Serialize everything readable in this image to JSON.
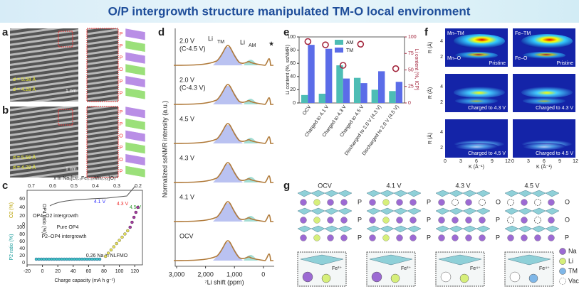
{
  "title": "O/P intergrowth structure manipulated TM-O local environment",
  "panel_a": {
    "label": "a",
    "notes": [
      "d = 5.58 Å",
      "d = 4.28 Å"
    ],
    "scale": "1 nm",
    "stack": [
      "P",
      "P",
      "P",
      "O",
      "P",
      "P"
    ]
  },
  "panel_b": {
    "label": "b",
    "notes": [
      "d = 5.56 Å",
      "d = 4.28 Å"
    ],
    "scale": "1 nm",
    "stack": [
      "P",
      "P",
      "O",
      "P",
      "O",
      "P"
    ]
  },
  "panel_c": {
    "label": "c",
    "top_axis_label": "x in Naₓ[Li₀.₁Fe₀.₃₇Mn₀.₅₃]O₂",
    "top_ticks": [
      0.7,
      0.6,
      0.5,
      0.4,
      0.3,
      0.2
    ],
    "x_label": "Charge capacity (mA h g⁻¹)",
    "xticks": [
      -20,
      0,
      20,
      40,
      60,
      80,
      100,
      120
    ],
    "xlim": [
      -20,
      130
    ],
    "o2_label": "O2 (%)",
    "o2_ticks": [
      0,
      20,
      40,
      60
    ],
    "op4_label": "OP4 ratio (%)",
    "p2_label": "P2 ratio (%)",
    "p2_ticks": [
      100,
      80,
      60,
      40,
      20,
      0
    ],
    "notes": [
      "4.1 V",
      "4.3 V",
      "4.5 V",
      "OP4–O2 intergrowth",
      "Pure OP4",
      "P2–OP4 intergrowth",
      "0.26 Na in NLFMO"
    ]
  },
  "panel_d": {
    "label": "d",
    "y_label": "Normalized ssNMR intensity (a.u.)",
    "x_label": "⁷Li shift (ppm)",
    "xlim": [
      3000,
      -300
    ],
    "xticks": [
      {
        "value": 3000,
        "label": "3,000"
      },
      {
        "value": 2000,
        "label": "2,000"
      },
      {
        "value": 1000,
        "label": "1,000"
      },
      0
    ],
    "peaks": [
      "Li",
      "TM",
      "Li",
      "AM",
      "★"
    ],
    "spectra": [
      [
        "2.0 V",
        "(C-4.5 V)"
      ],
      [
        "2.0 V",
        "(C-4.3 V)"
      ],
      [
        "4.5 V"
      ],
      [
        "4.3 V"
      ],
      [
        "4.1 V"
      ],
      [
        "OCV"
      ]
    ]
  },
  "chart_data": {
    "type": "bar",
    "label": "e",
    "categories": [
      "OCV",
      "Charged to 4.1 V",
      "Charged to 4.3 V",
      "Charged to 4.5 V",
      "Discharged to 2.0 V (4.3 V)",
      "Discharged to 2.0 V (4.5 V)"
    ],
    "series": [
      {
        "name": "AM",
        "color": "#4dbdb5",
        "values": [
          12,
          14,
          57,
          38,
          20,
          18
        ]
      },
      {
        "name": "TM",
        "color": "#5b6ce8",
        "values": [
          88,
          82,
          37,
          30,
          48,
          32
        ]
      },
      {
        "name": "Li content (%, ICP)",
        "color": "#a3263d",
        "axis": "y2",
        "values": [
          93,
          88,
          57,
          89,
          null,
          52
        ]
      }
    ],
    "y_label": "Li content (%, ssNMR)",
    "y2_label": "Li content (%, ICP)",
    "ylim": [
      0,
      100
    ],
    "yticks": [
      0,
      20,
      40,
      60,
      80,
      100
    ],
    "y2lim": [
      0,
      100
    ],
    "y2ticks": [
      0,
      25,
      50,
      75,
      100
    ]
  },
  "panel_f": {
    "label": "f",
    "maps": [
      [
        "Mn–TM",
        "Mn–O",
        "Pristine"
      ],
      [
        "Fe–TM",
        "Fe–O",
        "Pristine"
      ],
      [
        "Charged to 4.3 V"
      ],
      [
        "Charged to 4.3 V"
      ],
      [
        "Charged to 4.5 V"
      ],
      [
        "Charged to 4.5 V"
      ]
    ],
    "r_label": "R (Å)",
    "k_label": "K (Å⁻¹)",
    "r_ticks": [
      2,
      4
    ],
    "k_ticks": [
      0,
      3,
      6,
      9,
      12
    ]
  },
  "panel_g": {
    "label": "g",
    "states": [
      "OCV",
      "4.1 V",
      "4.3 V",
      "4.5 V"
    ],
    "stacks": [
      [
        "P",
        "P",
        "P"
      ],
      [
        "P",
        "P",
        "P"
      ],
      [
        "O",
        "P",
        "P"
      ],
      [
        "O",
        "O",
        "P"
      ]
    ],
    "ions": [
      "Fe³⁺",
      "Fe³⁺",
      "Fe⁴⁺",
      "Fe⁴⁺"
    ],
    "legend": [
      "Na",
      "Li",
      "TM",
      "Vac"
    ]
  }
}
